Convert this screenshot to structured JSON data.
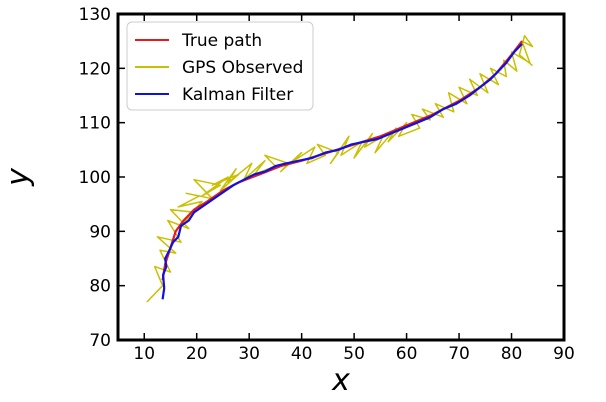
{
  "chart_data": {
    "type": "line",
    "title": "",
    "xlabel": "x",
    "ylabel": "y",
    "xlim": [
      5,
      90
    ],
    "ylim": [
      70,
      130
    ],
    "x_ticks": [
      10,
      20,
      30,
      40,
      50,
      60,
      70,
      80,
      90
    ],
    "y_ticks": [
      70,
      80,
      90,
      100,
      110,
      120,
      130
    ],
    "x_tick_labels": [
      "10",
      "20",
      "30",
      "40",
      "50",
      "60",
      "70",
      "80",
      "90"
    ],
    "y_tick_labels": [
      "70",
      "80",
      "90",
      "100",
      "110",
      "120",
      "130"
    ],
    "grid": false,
    "legend_position": "top-left",
    "series": [
      {
        "name": "True path",
        "color": "#e41a1c",
        "x": [
          13.5,
          14.0,
          15.0,
          16.0,
          17.5,
          19.5,
          22.0,
          25.0,
          28.0,
          32.0,
          36.0,
          40.0,
          45.0,
          50.0,
          55.0,
          60.0,
          65.0,
          70.0,
          74.0,
          77.0,
          80.0,
          82.0
        ],
        "y": [
          81.0,
          84.0,
          87.0,
          90.0,
          92.0,
          94.0,
          95.5,
          97.5,
          99.0,
          100.5,
          102.0,
          103.0,
          104.5,
          106.0,
          107.5,
          109.5,
          111.5,
          114.0,
          116.5,
          119.0,
          122.5,
          125.0
        ]
      },
      {
        "name": "GPS Observed",
        "color": "#c8c000",
        "x": [
          10.5,
          13.5,
          12.0,
          15.0,
          13.0,
          16.0,
          12.5,
          17.0,
          14.5,
          18.5,
          15.0,
          19.5,
          17.0,
          21.0,
          16.5,
          20.5,
          18.0,
          23.0,
          19.5,
          24.5,
          21.0,
          26.0,
          23.0,
          28.0,
          24.5,
          27.5,
          26.0,
          30.5,
          29.0,
          33.0,
          31.0,
          35.0,
          33.0,
          37.5,
          36.0,
          40.0,
          38.5,
          42.5,
          41.0,
          44.5,
          43.0,
          47.0,
          45.5,
          49.0,
          47.5,
          51.5,
          50.0,
          53.5,
          52.0,
          55.5,
          54.0,
          58.0,
          56.5,
          60.0,
          58.5,
          62.5,
          61.0,
          64.5,
          63.0,
          67.0,
          65.5,
          69.0,
          68.0,
          71.5,
          70.0,
          73.5,
          72.0,
          75.5,
          74.0,
          77.5,
          76.0,
          79.0,
          78.5,
          81.0,
          80.0,
          83.5,
          82.0,
          84.0,
          82.5,
          81.5,
          84.0
        ],
        "y": [
          77.0,
          80.0,
          83.5,
          82.5,
          86.5,
          86.0,
          89.0,
          88.0,
          92.0,
          90.5,
          94.0,
          93.5,
          91.0,
          95.5,
          94.5,
          96.5,
          97.0,
          96.0,
          99.5,
          98.5,
          96.5,
          100.0,
          98.5,
          100.5,
          97.5,
          101.5,
          99.0,
          102.5,
          99.5,
          103.0,
          100.5,
          102.0,
          104.0,
          102.5,
          101.0,
          104.5,
          103.0,
          105.5,
          102.5,
          104.0,
          106.0,
          104.5,
          102.5,
          107.5,
          104.0,
          106.5,
          103.5,
          108.0,
          105.5,
          107.5,
          104.5,
          109.0,
          106.5,
          110.0,
          107.5,
          109.0,
          111.5,
          110.5,
          112.5,
          111.0,
          113.5,
          112.0,
          115.5,
          113.5,
          116.5,
          115.0,
          118.0,
          115.5,
          119.0,
          117.0,
          120.0,
          118.5,
          121.5,
          119.5,
          123.0,
          121.0,
          125.0,
          124.0,
          126.0,
          122.5,
          120.5
        ]
      },
      {
        "name": "Kalman Filter",
        "color": "#1010e0",
        "x": [
          13.5,
          13.8,
          13.6,
          14.2,
          14.0,
          14.8,
          15.5,
          16.5,
          17.0,
          18.5,
          19.5,
          21.0,
          22.5,
          24.0,
          25.5,
          27.0,
          29.0,
          31.0,
          33.0,
          35.0,
          37.0,
          39.5,
          42.0,
          44.5,
          47.0,
          49.5,
          52.0,
          54.5,
          57.0,
          59.5,
          62.0,
          64.5,
          67.0,
          69.5,
          72.0,
          74.0,
          76.0,
          77.5,
          79.0,
          80.5,
          82.0
        ],
        "y": [
          77.5,
          79.5,
          82.0,
          83.5,
          85.0,
          86.5,
          88.0,
          89.0,
          91.0,
          92.0,
          93.5,
          94.5,
          95.5,
          96.5,
          97.5,
          98.5,
          99.5,
          100.5,
          101.0,
          102.0,
          102.5,
          103.0,
          103.5,
          104.5,
          105.0,
          106.0,
          106.5,
          107.0,
          108.0,
          109.0,
          110.0,
          111.0,
          112.5,
          113.5,
          115.0,
          116.5,
          118.0,
          119.5,
          121.0,
          123.0,
          124.5
        ]
      }
    ]
  }
}
